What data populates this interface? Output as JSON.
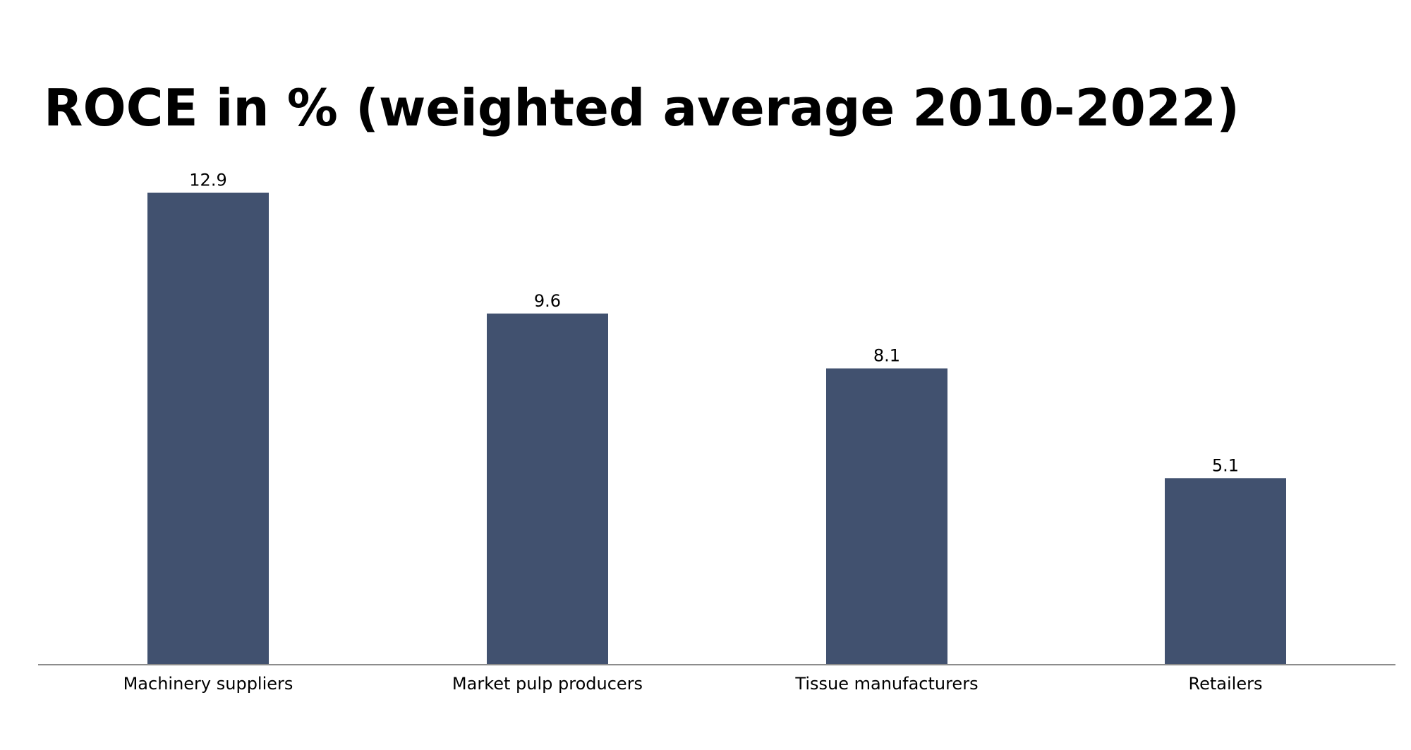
{
  "chart_data": {
    "type": "bar",
    "title": "ROCE in % (weighted average 2010-2022)",
    "categories": [
      "Machinery suppliers",
      "Market pulp producers",
      "Tissue manufacturers",
      "Retailers"
    ],
    "values": [
      12.9,
      9.6,
      8.1,
      5.1
    ],
    "data_labels": [
      "12.9",
      "9.6",
      "8.1",
      "5.1"
    ],
    "xlabel": "",
    "ylabel": "",
    "ylim": [
      0,
      13
    ],
    "grid": false,
    "legend": "none",
    "colors": {
      "bar": "#41516f",
      "axis": "#8c8c8c",
      "text": "#000000"
    }
  }
}
